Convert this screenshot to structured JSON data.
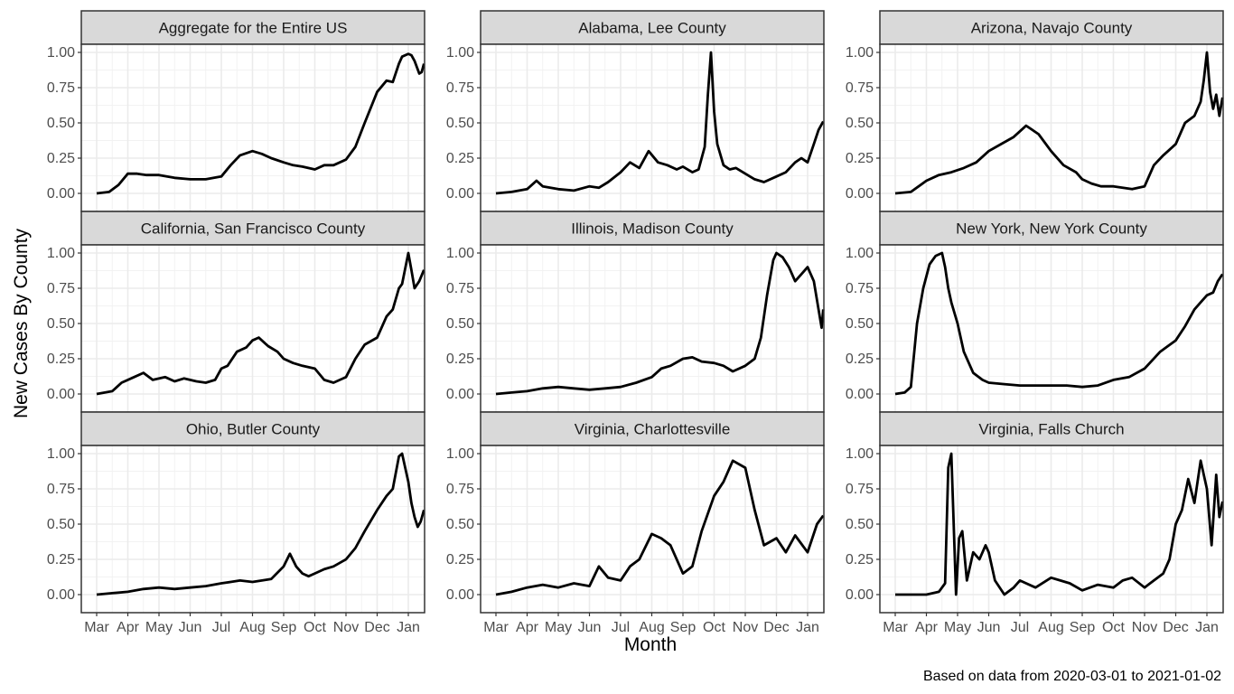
{
  "chart_data": {
    "type": "line",
    "layout": "facet-grid-3x3",
    "xlabel": "Month",
    "ylabel": "New Cases By County",
    "caption": "Based on data from 2020-03-01 to 2021-01-02",
    "x_ticks": [
      "Mar",
      "Apr",
      "May",
      "Jun",
      "Jul",
      "Aug",
      "Sep",
      "Oct",
      "Nov",
      "Dec",
      "Jan"
    ],
    "y_ticks": [
      "0.00",
      "0.25",
      "0.50",
      "0.75",
      "1.00"
    ],
    "ylim": [
      0,
      1
    ],
    "x_unit": "month (0 = Mar 1, 2020; 10 = Jan 1, 2021)",
    "grid": true,
    "line_color": "#000000",
    "strip_color": "#d9d9d9",
    "panels": [
      {
        "title": "Aggregate for the Entire US",
        "x": [
          0,
          0.4,
          0.7,
          1.0,
          1.3,
          1.6,
          2.0,
          2.5,
          3.0,
          3.5,
          4.0,
          4.3,
          4.6,
          5.0,
          5.3,
          5.6,
          6.0,
          6.3,
          6.6,
          7.0,
          7.3,
          7.6,
          8.0,
          8.3,
          8.6,
          9.0,
          9.3,
          9.5,
          9.7,
          9.8,
          10.0,
          10.1,
          10.2,
          10.35,
          10.43,
          10.5
        ],
        "y": [
          0,
          0.01,
          0.06,
          0.14,
          0.14,
          0.13,
          0.13,
          0.11,
          0.1,
          0.1,
          0.12,
          0.2,
          0.27,
          0.3,
          0.28,
          0.25,
          0.22,
          0.2,
          0.19,
          0.17,
          0.2,
          0.2,
          0.24,
          0.33,
          0.5,
          0.72,
          0.8,
          0.79,
          0.92,
          0.97,
          0.99,
          0.98,
          0.94,
          0.85,
          0.86,
          0.92
        ]
      },
      {
        "title": "Alabama, Lee County",
        "x": [
          0,
          0.5,
          1.0,
          1.3,
          1.5,
          2.0,
          2.5,
          3.0,
          3.3,
          3.6,
          4.0,
          4.3,
          4.6,
          4.9,
          5.2,
          5.5,
          5.8,
          6.0,
          6.3,
          6.5,
          6.7,
          6.8,
          6.9,
          7.0,
          7.1,
          7.3,
          7.5,
          7.7,
          8.0,
          8.3,
          8.6,
          9.0,
          9.3,
          9.6,
          9.8,
          10.0,
          10.2,
          10.35,
          10.5
        ],
        "y": [
          0,
          0.01,
          0.03,
          0.09,
          0.05,
          0.03,
          0.02,
          0.05,
          0.04,
          0.08,
          0.15,
          0.22,
          0.18,
          0.3,
          0.22,
          0.2,
          0.17,
          0.19,
          0.15,
          0.17,
          0.33,
          0.7,
          1.0,
          0.58,
          0.35,
          0.2,
          0.17,
          0.18,
          0.14,
          0.1,
          0.08,
          0.12,
          0.15,
          0.22,
          0.25,
          0.22,
          0.35,
          0.45,
          0.51
        ]
      },
      {
        "title": "Arizona, Navajo County",
        "x": [
          0,
          0.5,
          1.0,
          1.4,
          1.8,
          2.2,
          2.6,
          3.0,
          3.4,
          3.8,
          4.2,
          4.6,
          5.0,
          5.4,
          5.8,
          6.0,
          6.3,
          6.6,
          7.0,
          7.3,
          7.6,
          8.0,
          8.3,
          8.6,
          9.0,
          9.3,
          9.6,
          9.8,
          9.9,
          10.0,
          10.1,
          10.2,
          10.3,
          10.4,
          10.5
        ],
        "y": [
          0,
          0.01,
          0.09,
          0.13,
          0.15,
          0.18,
          0.22,
          0.3,
          0.35,
          0.4,
          0.48,
          0.42,
          0.3,
          0.2,
          0.15,
          0.1,
          0.07,
          0.05,
          0.05,
          0.04,
          0.03,
          0.05,
          0.2,
          0.27,
          0.35,
          0.5,
          0.55,
          0.65,
          0.8,
          1.0,
          0.72,
          0.6,
          0.7,
          0.55,
          0.68
        ]
      },
      {
        "title": "California, San Francisco County",
        "x": [
          0,
          0.5,
          0.8,
          1.2,
          1.5,
          1.8,
          2.2,
          2.5,
          2.8,
          3.2,
          3.5,
          3.8,
          4.0,
          4.2,
          4.5,
          4.8,
          5.0,
          5.2,
          5.5,
          5.8,
          6.0,
          6.3,
          6.6,
          7.0,
          7.3,
          7.6,
          8.0,
          8.3,
          8.6,
          9.0,
          9.3,
          9.5,
          9.7,
          9.8,
          10.0,
          10.1,
          10.2,
          10.35,
          10.5
        ],
        "y": [
          0,
          0.02,
          0.08,
          0.12,
          0.15,
          0.1,
          0.12,
          0.09,
          0.11,
          0.09,
          0.08,
          0.1,
          0.18,
          0.2,
          0.3,
          0.33,
          0.38,
          0.4,
          0.34,
          0.3,
          0.25,
          0.22,
          0.2,
          0.18,
          0.1,
          0.08,
          0.12,
          0.25,
          0.35,
          0.4,
          0.55,
          0.6,
          0.75,
          0.78,
          1.0,
          0.88,
          0.75,
          0.8,
          0.88
        ]
      },
      {
        "title": "Illinois, Madison County",
        "x": [
          0,
          0.5,
          1.0,
          1.5,
          2.0,
          2.5,
          3.0,
          3.5,
          4.0,
          4.5,
          5.0,
          5.3,
          5.6,
          6.0,
          6.3,
          6.6,
          7.0,
          7.3,
          7.6,
          8.0,
          8.3,
          8.5,
          8.7,
          8.9,
          9.0,
          9.2,
          9.4,
          9.6,
          9.8,
          10.0,
          10.2,
          10.35,
          10.45,
          10.5
        ],
        "y": [
          0,
          0.01,
          0.02,
          0.04,
          0.05,
          0.04,
          0.03,
          0.04,
          0.05,
          0.08,
          0.12,
          0.18,
          0.2,
          0.25,
          0.26,
          0.23,
          0.22,
          0.2,
          0.16,
          0.2,
          0.25,
          0.4,
          0.7,
          0.95,
          1.0,
          0.97,
          0.9,
          0.8,
          0.85,
          0.9,
          0.8,
          0.6,
          0.47,
          0.6
        ]
      },
      {
        "title": "New York, New York County",
        "x": [
          0,
          0.3,
          0.5,
          0.7,
          0.9,
          1.1,
          1.3,
          1.5,
          1.6,
          1.7,
          1.8,
          2.0,
          2.2,
          2.5,
          2.8,
          3.0,
          3.5,
          4.0,
          4.5,
          5.0,
          5.5,
          6.0,
          6.5,
          7.0,
          7.5,
          8.0,
          8.5,
          9.0,
          9.3,
          9.6,
          9.8,
          10.0,
          10.2,
          10.35,
          10.5
        ],
        "y": [
          0,
          0.01,
          0.05,
          0.5,
          0.75,
          0.92,
          0.98,
          1.0,
          0.9,
          0.75,
          0.65,
          0.5,
          0.3,
          0.15,
          0.1,
          0.08,
          0.07,
          0.06,
          0.06,
          0.06,
          0.06,
          0.05,
          0.06,
          0.1,
          0.12,
          0.18,
          0.3,
          0.38,
          0.48,
          0.6,
          0.65,
          0.7,
          0.72,
          0.8,
          0.85
        ]
      },
      {
        "title": "Ohio, Butler County",
        "x": [
          0,
          0.5,
          1.0,
          1.5,
          2.0,
          2.5,
          3.0,
          3.5,
          4.0,
          4.3,
          4.6,
          5.0,
          5.3,
          5.6,
          6.0,
          6.2,
          6.4,
          6.6,
          6.8,
          7.0,
          7.3,
          7.6,
          8.0,
          8.3,
          8.6,
          9.0,
          9.3,
          9.5,
          9.7,
          9.8,
          10.0,
          10.1,
          10.2,
          10.3,
          10.4,
          10.5
        ],
        "y": [
          0,
          0.01,
          0.02,
          0.04,
          0.05,
          0.04,
          0.05,
          0.06,
          0.08,
          0.09,
          0.1,
          0.09,
          0.1,
          0.11,
          0.2,
          0.29,
          0.2,
          0.15,
          0.13,
          0.15,
          0.18,
          0.2,
          0.25,
          0.33,
          0.45,
          0.6,
          0.7,
          0.75,
          0.98,
          1.0,
          0.8,
          0.65,
          0.55,
          0.48,
          0.52,
          0.6
        ]
      },
      {
        "title": "Virginia, Charlottesville",
        "x": [
          0,
          0.5,
          1.0,
          1.5,
          2.0,
          2.5,
          3.0,
          3.3,
          3.6,
          4.0,
          4.3,
          4.6,
          5.0,
          5.3,
          5.6,
          6.0,
          6.3,
          6.6,
          7.0,
          7.3,
          7.6,
          8.0,
          8.3,
          8.6,
          9.0,
          9.3,
          9.6,
          10.0,
          10.3,
          10.5
        ],
        "y": [
          0,
          0.02,
          0.05,
          0.07,
          0.05,
          0.08,
          0.06,
          0.2,
          0.12,
          0.1,
          0.2,
          0.25,
          0.43,
          0.4,
          0.35,
          0.15,
          0.2,
          0.45,
          0.7,
          0.8,
          0.95,
          0.9,
          0.6,
          0.35,
          0.4,
          0.3,
          0.42,
          0.3,
          0.5,
          0.56
        ]
      },
      {
        "title": "Virginia, Falls Church",
        "x": [
          0,
          1.0,
          1.4,
          1.6,
          1.7,
          1.8,
          1.95,
          2.05,
          2.15,
          2.3,
          2.5,
          2.7,
          2.9,
          3.0,
          3.2,
          3.5,
          3.8,
          4.0,
          4.5,
          5.0,
          5.3,
          5.6,
          6.0,
          6.5,
          7.0,
          7.3,
          7.6,
          8.0,
          8.3,
          8.6,
          8.8,
          9.0,
          9.2,
          9.4,
          9.6,
          9.8,
          10.0,
          10.15,
          10.3,
          10.4,
          10.5
        ],
        "y": [
          0,
          0,
          0.02,
          0.08,
          0.9,
          1.0,
          0.0,
          0.4,
          0.45,
          0.1,
          0.3,
          0.25,
          0.35,
          0.3,
          0.1,
          0.0,
          0.05,
          0.1,
          0.05,
          0.12,
          0.1,
          0.08,
          0.03,
          0.07,
          0.05,
          0.1,
          0.12,
          0.05,
          0.1,
          0.15,
          0.25,
          0.5,
          0.6,
          0.82,
          0.65,
          0.95,
          0.75,
          0.35,
          0.85,
          0.55,
          0.66
        ]
      }
    ]
  }
}
